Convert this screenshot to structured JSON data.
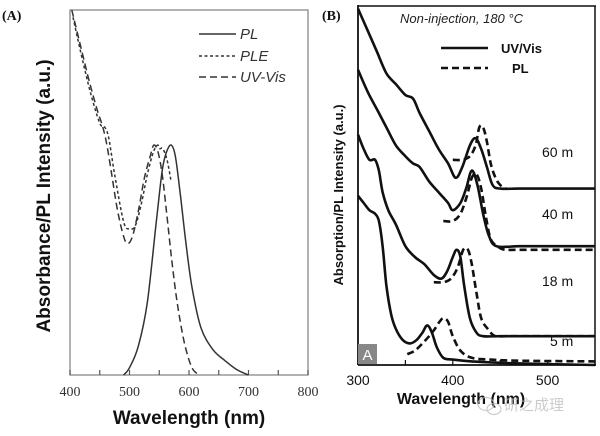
{
  "chart_data": [
    {
      "panel": "(A)",
      "type": "line",
      "xlabel": "Wavelength (nm)",
      "ylabel": "Absorbance/PL Intensity (a.u.)",
      "xlim": [
        400,
        800
      ],
      "ylim": [
        0,
        1
      ],
      "xticks": [
        400,
        500,
        600,
        700,
        800
      ],
      "grid": false,
      "legend_position": "top-right",
      "series": [
        {
          "name": "PL",
          "style": "solid",
          "x": [
            490,
            500,
            515,
            530,
            545,
            555,
            562,
            570,
            577,
            585,
            595,
            605,
            620,
            640,
            660,
            680,
            700
          ],
          "y": [
            0.0,
            0.02,
            0.08,
            0.2,
            0.42,
            0.56,
            0.61,
            0.63,
            0.6,
            0.5,
            0.36,
            0.24,
            0.13,
            0.07,
            0.04,
            0.015,
            0.0
          ]
        },
        {
          "name": "PLE",
          "style": "dotted",
          "x": [
            405,
            420,
            435,
            450,
            458,
            465,
            475,
            490,
            500,
            510,
            520,
            530,
            540,
            547,
            551,
            556,
            563,
            570
          ],
          "y": [
            0.98,
            0.87,
            0.77,
            0.69,
            0.68,
            0.65,
            0.55,
            0.42,
            0.4,
            0.41,
            0.47,
            0.55,
            0.61,
            0.63,
            0.62,
            0.62,
            0.59,
            0.53
          ]
        },
        {
          "name": "UV-Vis",
          "style": "dashed",
          "x": [
            403,
            415,
            430,
            445,
            455,
            462,
            470,
            480,
            490,
            497,
            505,
            515,
            525,
            535,
            541,
            548,
            555,
            562,
            570,
            580,
            592,
            605,
            618
          ],
          "y": [
            1.0,
            0.92,
            0.82,
            0.73,
            0.68,
            0.63,
            0.55,
            0.45,
            0.38,
            0.36,
            0.38,
            0.45,
            0.54,
            0.6,
            0.63,
            0.61,
            0.55,
            0.45,
            0.33,
            0.2,
            0.09,
            0.02,
            0.0
          ]
        }
      ]
    },
    {
      "panel": "(B)",
      "type": "line",
      "title": "Non-injection, 180 °C",
      "xlabel": "Wavelength (nm)",
      "ylabel": "Absorption/PL Intensity (a.u.)",
      "xlim": [
        300,
        550
      ],
      "ylim": [
        0,
        1
      ],
      "xticks": [
        300,
        400,
        500
      ],
      "grid": false,
      "legend_position": "top-right",
      "legend": [
        "UV/Vis",
        "PL"
      ],
      "corner_badge": "A",
      "series": [
        {
          "name": "UV/Vis 60 m",
          "style": "solid",
          "time": "60 m",
          "x": [
            300,
            310,
            320,
            330,
            340,
            350,
            358,
            365,
            375,
            385,
            395,
            403,
            410,
            418,
            424,
            430,
            436,
            442,
            450,
            470,
            500,
            550
          ],
          "y": [
            0.99,
            0.93,
            0.87,
            0.81,
            0.78,
            0.75,
            0.74,
            0.7,
            0.65,
            0.6,
            0.56,
            0.52,
            0.55,
            0.61,
            0.63,
            0.6,
            0.55,
            0.5,
            0.49,
            0.49,
            0.49,
            0.49
          ]
        },
        {
          "name": "PL 60 m",
          "style": "dashed",
          "time": "60 m",
          "x": [
            400,
            410,
            418,
            424,
            428,
            432,
            436,
            440,
            445,
            450,
            456
          ],
          "y": [
            0.57,
            0.57,
            0.58,
            0.61,
            0.66,
            0.66,
            0.62,
            0.56,
            0.52,
            0.5,
            0.49
          ]
        },
        {
          "name": "UV/Vis 40 m",
          "style": "solid",
          "time": "40 m",
          "x": [
            300,
            310,
            320,
            330,
            340,
            350,
            358,
            365,
            375,
            385,
            395,
            400,
            408,
            414,
            420,
            426,
            432,
            438,
            446,
            470,
            500,
            550
          ],
          "y": [
            0.82,
            0.76,
            0.71,
            0.66,
            0.61,
            0.58,
            0.56,
            0.55,
            0.51,
            0.48,
            0.45,
            0.43,
            0.45,
            0.49,
            0.54,
            0.5,
            0.42,
            0.36,
            0.33,
            0.33,
            0.33,
            0.33
          ]
        },
        {
          "name": "PL 40 m",
          "style": "dashed",
          "time": "40 m",
          "x": [
            390,
            400,
            408,
            415,
            420,
            425,
            430,
            435,
            440,
            447,
            455,
            470,
            550
          ],
          "y": [
            0.4,
            0.4,
            0.42,
            0.47,
            0.52,
            0.53,
            0.49,
            0.41,
            0.35,
            0.33,
            0.32,
            0.32,
            0.32
          ]
        },
        {
          "name": "UV/Vis 18 m",
          "style": "solid",
          "time": "18 m",
          "x": [
            300,
            306,
            312,
            318,
            322,
            326,
            332,
            340,
            350,
            360,
            370,
            380,
            388,
            394,
            400,
            404,
            408,
            412,
            418,
            425,
            432,
            450,
            500,
            550
          ],
          "y": [
            0.64,
            0.6,
            0.57,
            0.57,
            0.54,
            0.48,
            0.43,
            0.39,
            0.33,
            0.3,
            0.28,
            0.25,
            0.24,
            0.26,
            0.3,
            0.32,
            0.3,
            0.22,
            0.13,
            0.09,
            0.08,
            0.08,
            0.08,
            0.08
          ]
        },
        {
          "name": "PL 18 m",
          "style": "dashed",
          "time": "18 m",
          "x": [
            380,
            390,
            398,
            405,
            411,
            416,
            420,
            425,
            430,
            437,
            445,
            460,
            550
          ],
          "y": [
            0.23,
            0.23,
            0.24,
            0.27,
            0.32,
            0.32,
            0.28,
            0.2,
            0.13,
            0.1,
            0.08,
            0.08,
            0.08
          ]
        },
        {
          "name": "UV/Vis 5 m",
          "style": "solid",
          "time": "5 m",
          "x": [
            300,
            306,
            312,
            318,
            322,
            326,
            330,
            335,
            340,
            347,
            355,
            362,
            368,
            373,
            378,
            383,
            390,
            400,
            420,
            460,
            550
          ],
          "y": [
            0.47,
            0.45,
            0.43,
            0.42,
            0.4,
            0.33,
            0.22,
            0.14,
            0.1,
            0.07,
            0.06,
            0.07,
            0.09,
            0.11,
            0.09,
            0.05,
            0.02,
            0.015,
            0.01,
            0.005,
            0.0
          ]
        },
        {
          "name": "PL 5 m",
          "style": "dashed",
          "time": "5 m",
          "x": [
            352,
            360,
            368,
            375,
            381,
            386,
            390,
            395,
            400,
            408,
            420,
            440,
            470,
            550
          ],
          "y": [
            0.03,
            0.04,
            0.06,
            0.08,
            0.1,
            0.12,
            0.13,
            0.12,
            0.08,
            0.04,
            0.02,
            0.015,
            0.012,
            0.01
          ]
        }
      ],
      "time_labels": [
        "60 m",
        "40 m",
        "18 m",
        "5 m"
      ]
    }
  ],
  "labels": {
    "panel_a": "(A)",
    "panel_b": "(B)",
    "a_xlabel": "Wavelength (nm)",
    "a_ylabel": "Absorbance/PL Intensity (a.u.)",
    "b_xlabel": "Wavelength (nm)",
    "b_ylabel": "Absorption/PL Intensity (a.u.)",
    "b_title": "Non-injection, 180 °C",
    "a_legend": [
      "PL",
      "PLE",
      "UV-Vis"
    ],
    "b_legend": [
      "UV/Vis",
      "PL"
    ],
    "b_badge": "A",
    "a_xticks": [
      "400",
      "500",
      "600",
      "700",
      "800"
    ],
    "b_xticks": [
      "300",
      "400",
      "500"
    ],
    "b_times": [
      "60 m",
      "40 m",
      "18 m",
      "5 m"
    ]
  },
  "watermark": "研之成理"
}
